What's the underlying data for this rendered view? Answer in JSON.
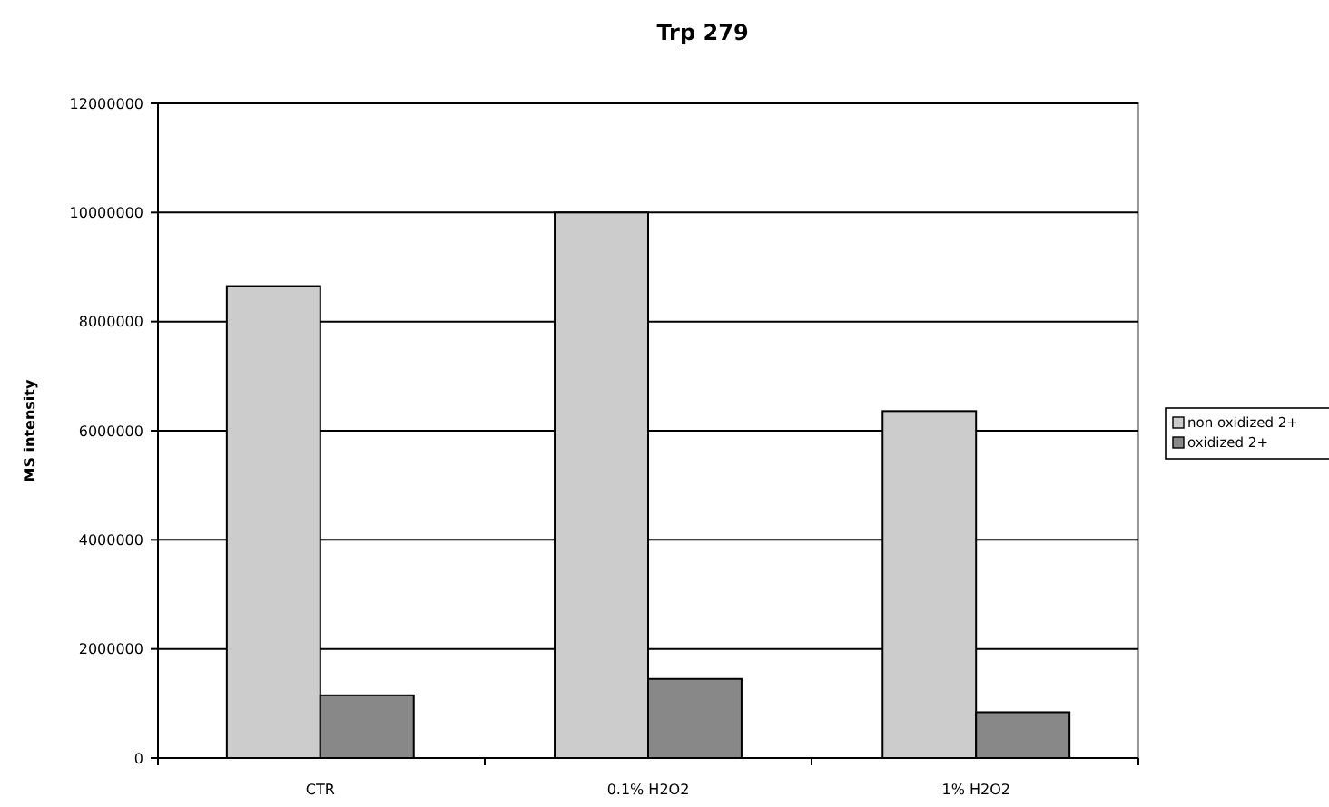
{
  "chart_data": {
    "type": "bar",
    "title": "Trp 279",
    "ylabel": "MS intensity",
    "categories": [
      "CTR",
      "0.1% H2O2",
      "1% H2O2"
    ],
    "series": [
      {
        "name": "non oxidized 2+",
        "color": "#cccccc",
        "values": [
          8650000,
          10000000,
          6360000
        ]
      },
      {
        "name": "oxidized 2+",
        "color": "#888888",
        "values": [
          1150000,
          1450000,
          840000
        ]
      }
    ],
    "ylim": [
      0,
      12000000
    ],
    "yticks": [
      0,
      2000000,
      4000000,
      6000000,
      8000000,
      10000000,
      12000000
    ],
    "grid": "y",
    "legend": "right"
  }
}
